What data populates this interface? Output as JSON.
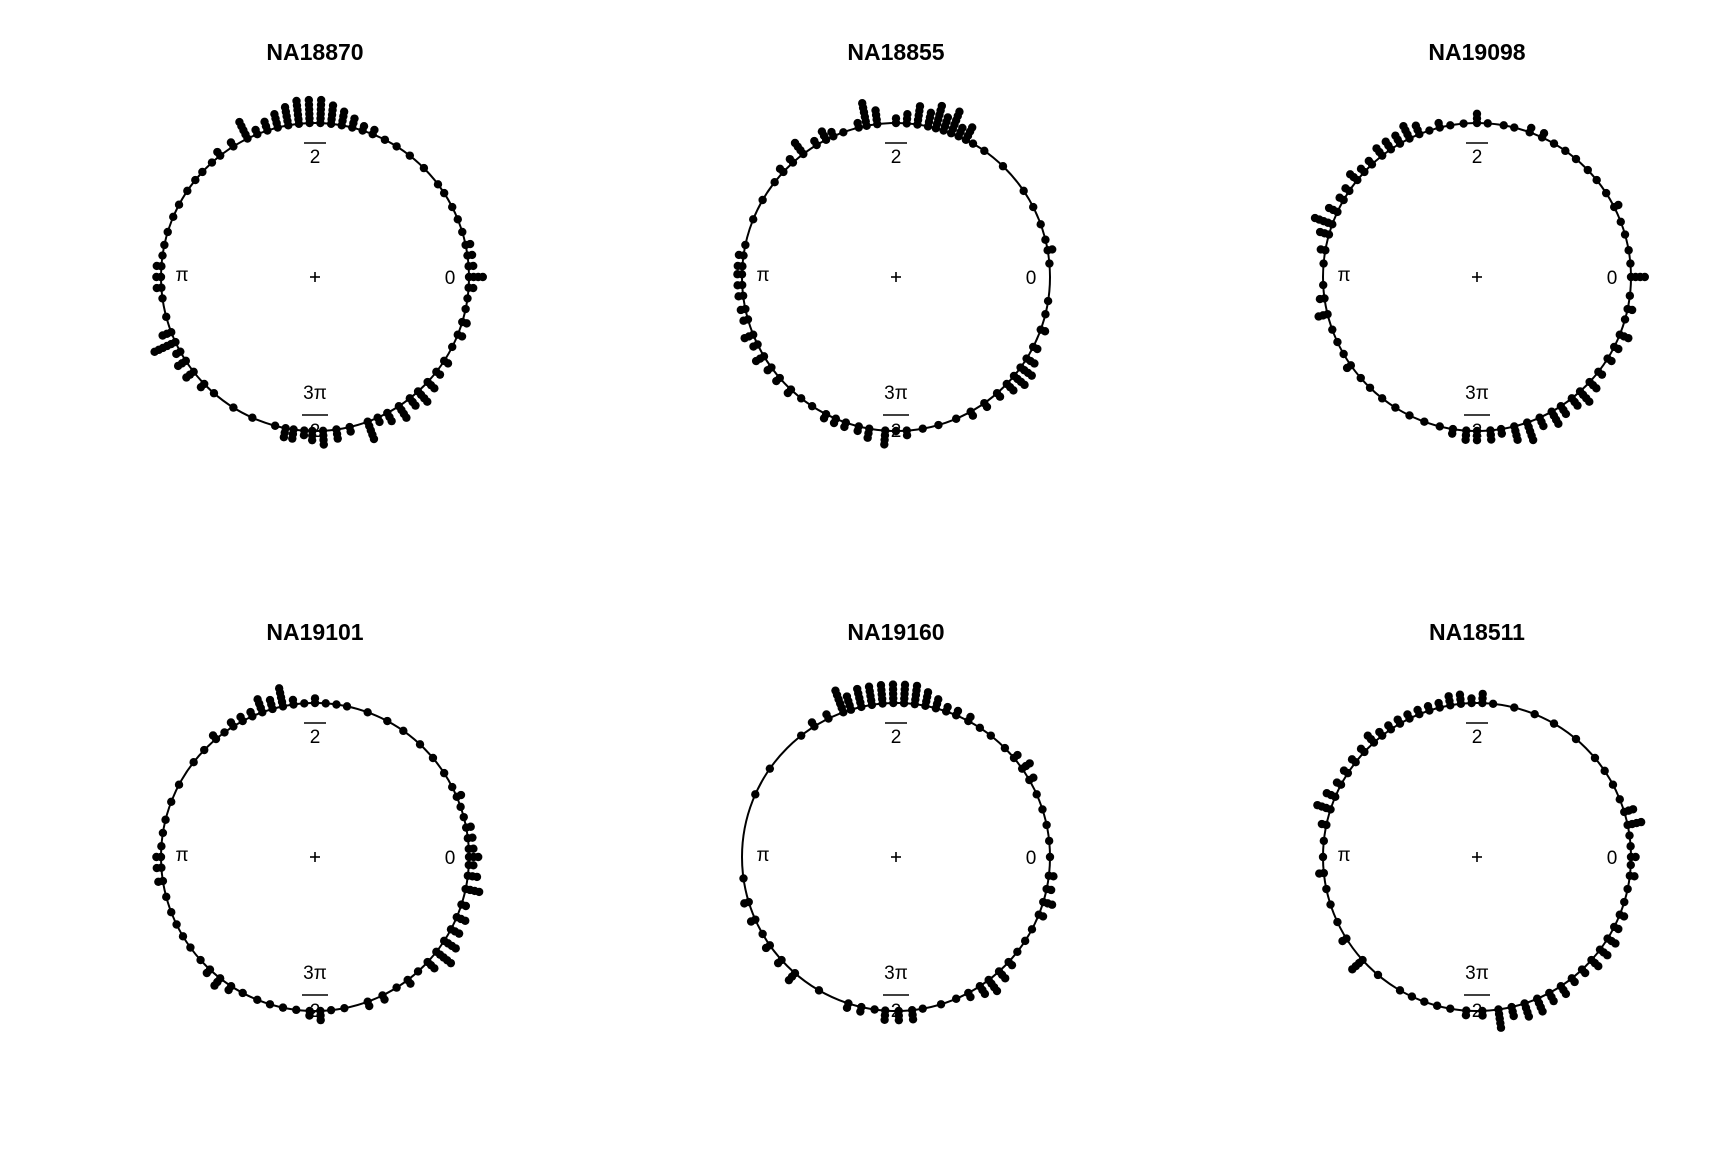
{
  "chart_data": [
    {
      "type": "scatter",
      "subtype": "circular-dotplot",
      "title": "NA18870",
      "axis_labels": {
        "zero": "0",
        "half_pi_num": "",
        "half_pi_den": "2",
        "pi": "π",
        "three_half_pi_num": "3π",
        "three_half_pi_den": "2"
      },
      "bins_deg": [
        0,
        4,
        8,
        12,
        17,
        22,
        27,
        33,
        37,
        45,
        52,
        58,
        63,
        68,
        72,
        76,
        80,
        84,
        88,
        92,
        96,
        100,
        104,
        108,
        112,
        116,
        122,
        128,
        132,
        137,
        141,
        146,
        152,
        157,
        163,
        168,
        172,
        176,
        180,
        184,
        188,
        195,
        201,
        205,
        209,
        213,
        218,
        224,
        229,
        238,
        246,
        255,
        259,
        262,
        266,
        269,
        273,
        278,
        283,
        290,
        294,
        298,
        303,
        308,
        312,
        317,
        322,
        327,
        333,
        338,
        343,
        348,
        352,
        356
      ],
      "counts": [
        4,
        2,
        2,
        2,
        1,
        1,
        1,
        1,
        1,
        1,
        1,
        1,
        1,
        2,
        2,
        3,
        4,
        5,
        6,
        6,
        6,
        5,
        4,
        3,
        2,
        5,
        2,
        2,
        1,
        1,
        1,
        1,
        1,
        1,
        1,
        1,
        1,
        2,
        2,
        2,
        1,
        1,
        3,
        6,
        2,
        3,
        3,
        2,
        1,
        1,
        1,
        1,
        3,
        3,
        2,
        3,
        4,
        3,
        2,
        5,
        2,
        3,
        4,
        3,
        4,
        3,
        2,
        2,
        1,
        2,
        2,
        1,
        1,
        2
      ]
    },
    {
      "type": "scatter",
      "subtype": "circular-dotplot",
      "title": "NA18855",
      "axis_labels": {
        "zero": "0",
        "half_pi_num": "",
        "half_pi_den": "2",
        "pi": "π",
        "three_half_pi_num": "3π",
        "three_half_pi_den": "2"
      },
      "bins_deg": [
        5,
        10,
        14,
        20,
        27,
        34,
        46,
        55,
        60,
        63,
        66,
        69,
        72,
        75,
        78,
        82,
        86,
        90,
        97,
        101,
        104,
        110,
        114,
        117,
        121,
        127,
        132,
        137,
        142,
        150,
        158,
        168,
        172,
        176,
        179,
        183,
        187,
        192,
        196,
        202,
        206,
        211,
        216,
        221,
        227,
        232,
        237,
        243,
        247,
        251,
        256,
        260,
        266,
        270,
        274,
        280,
        286,
        293,
        299,
        305,
        311,
        316,
        320,
        324,
        328,
        333,
        340,
        346,
        351
      ],
      "counts": [
        1,
        2,
        1,
        1,
        1,
        1,
        1,
        1,
        1,
        4,
        3,
        6,
        4,
        6,
        4,
        5,
        3,
        2,
        4,
        6,
        2,
        1,
        2,
        3,
        2,
        4,
        2,
        2,
        1,
        1,
        1,
        1,
        2,
        2,
        2,
        2,
        2,
        2,
        2,
        3,
        2,
        3,
        2,
        2,
        2,
        1,
        1,
        2,
        2,
        2,
        2,
        3,
        4,
        1,
        2,
        1,
        1,
        1,
        2,
        2,
        2,
        3,
        4,
        4,
        3,
        2,
        2,
        1,
        1
      ]
    },
    {
      "type": "scatter",
      "subtype": "circular-dotplot",
      "title": "NA19098",
      "axis_labels": {
        "zero": "0",
        "half_pi_num": "",
        "half_pi_den": "2",
        "pi": "π",
        "three_half_pi_num": "3π",
        "three_half_pi_den": "2"
      },
      "bins_deg": [
        0,
        5,
        10,
        16,
        21,
        27,
        33,
        39,
        44,
        50,
        55,
        60,
        65,
        70,
        76,
        80,
        86,
        90,
        95,
        100,
        104,
        108,
        112,
        116,
        120,
        124,
        128,
        133,
        137,
        141,
        146,
        150,
        155,
        160,
        164,
        170,
        175,
        183,
        188,
        194,
        200,
        205,
        210,
        215,
        221,
        226,
        232,
        238,
        244,
        250,
        256,
        261,
        266,
        270,
        275,
        279,
        284,
        289,
        294,
        299,
        303,
        308,
        312,
        317,
        322,
        328,
        333,
        338,
        344,
        348,
        353
      ],
      "counts": [
        4,
        1,
        1,
        1,
        1,
        2,
        1,
        1,
        1,
        1,
        1,
        1,
        2,
        2,
        1,
        1,
        1,
        3,
        1,
        1,
        2,
        1,
        3,
        4,
        3,
        3,
        3,
        2,
        2,
        3,
        2,
        2,
        3,
        5,
        3,
        2,
        1,
        1,
        2,
        3,
        1,
        1,
        1,
        2,
        1,
        1,
        1,
        1,
        1,
        1,
        1,
        2,
        3,
        3,
        3,
        2,
        4,
        5,
        3,
        4,
        3,
        3,
        4,
        3,
        2,
        2,
        2,
        3,
        1,
        2,
        1
      ]
    },
    {
      "type": "scatter",
      "subtype": "circular-dotplot",
      "title": "NA19101",
      "axis_labels": {
        "zero": "0",
        "half_pi_num": "",
        "half_pi_den": "2",
        "pi": "π",
        "three_half_pi_num": "3π",
        "three_half_pi_den": "2"
      },
      "bins_deg": [
        0,
        3,
        7,
        11,
        15,
        19,
        23,
        27,
        33,
        40,
        47,
        55,
        62,
        70,
        78,
        82,
        86,
        90,
        94,
        98,
        102,
        106,
        110,
        114,
        118,
        122,
        126,
        130,
        136,
        142,
        152,
        159,
        166,
        171,
        176,
        180,
        184,
        189,
        195,
        201,
        206,
        211,
        216,
        222,
        227,
        232,
        237,
        242,
        248,
        253,
        258,
        263,
        268,
        272,
        276,
        281,
        290,
        296,
        302,
        307,
        312,
        317,
        322,
        327,
        332,
        337,
        342,
        348,
        353,
        357
      ],
      "counts": [
        3,
        2,
        2,
        2,
        1,
        1,
        2,
        1,
        1,
        1,
        1,
        1,
        1,
        1,
        1,
        1,
        1,
        2,
        1,
        2,
        5,
        3,
        4,
        2,
        2,
        2,
        1,
        2,
        1,
        1,
        1,
        1,
        1,
        1,
        1,
        2,
        2,
        2,
        1,
        1,
        1,
        1,
        1,
        1,
        2,
        3,
        2,
        1,
        1,
        1,
        1,
        1,
        2,
        3,
        1,
        1,
        2,
        2,
        1,
        2,
        1,
        3,
        5,
        4,
        3,
        3,
        2,
        4,
        3,
        2
      ]
    },
    {
      "type": "scatter",
      "subtype": "circular-dotplot",
      "title": "NA19160",
      "axis_labels": {
        "zero": "0",
        "half_pi_num": "",
        "half_pi_den": "2",
        "pi": "π",
        "three_half_pi_num": "3π",
        "three_half_pi_den": "2"
      },
      "bins_deg": [
        0,
        6,
        12,
        18,
        24,
        30,
        35,
        40,
        45,
        52,
        57,
        62,
        67,
        71,
        75,
        79,
        83,
        87,
        91,
        95,
        99,
        103,
        107,
        110,
        116,
        122,
        128,
        145,
        156,
        188,
        197,
        204,
        210,
        215,
        222,
        229,
        240,
        252,
        257,
        262,
        266,
        271,
        276,
        280,
        287,
        293,
        298,
        303,
        307,
        312,
        317,
        322,
        327,
        332,
        338,
        343,
        348,
        353
      ],
      "counts": [
        1,
        1,
        1,
        1,
        1,
        2,
        3,
        2,
        1,
        1,
        1,
        2,
        2,
        2,
        3,
        4,
        5,
        5,
        5,
        5,
        5,
        5,
        4,
        6,
        2,
        2,
        1,
        1,
        1,
        1,
        2,
        2,
        1,
        2,
        2,
        3,
        1,
        2,
        2,
        1,
        3,
        3,
        3,
        1,
        1,
        1,
        2,
        3,
        4,
        3,
        2,
        1,
        1,
        1,
        2,
        3,
        2,
        2
      ]
    },
    {
      "type": "scatter",
      "subtype": "circular-dotplot",
      "title": "NA18511",
      "axis_labels": {
        "zero": "0",
        "half_pi_num": "",
        "half_pi_den": "2",
        "pi": "π",
        "three_half_pi_num": "3π",
        "three_half_pi_den": "2"
      },
      "bins_deg": [
        0,
        4,
        8,
        12,
        17,
        22,
        28,
        34,
        40,
        50,
        60,
        68,
        76,
        84,
        88,
        92,
        96,
        100,
        104,
        108,
        112,
        116,
        120,
        124,
        128,
        132,
        137,
        142,
        147,
        152,
        157,
        162,
        168,
        174,
        180,
        186,
        192,
        198,
        205,
        212,
        222,
        230,
        240,
        245,
        250,
        255,
        260,
        266,
        272,
        278,
        283,
        288,
        293,
        298,
        303,
        308,
        313,
        318,
        323,
        328,
        333,
        338,
        343,
        348,
        353,
        357
      ],
      "counts": [
        2,
        1,
        1,
        4,
        3,
        1,
        1,
        1,
        1,
        1,
        1,
        1,
        1,
        1,
        3,
        2,
        3,
        3,
        2,
        2,
        2,
        2,
        2,
        2,
        2,
        3,
        2,
        2,
        2,
        2,
        3,
        4,
        2,
        1,
        1,
        2,
        1,
        1,
        1,
        2,
        4,
        1,
        1,
        1,
        1,
        1,
        1,
        2,
        2,
        5,
        3,
        4,
        4,
        3,
        3,
        2,
        2,
        3,
        3,
        3,
        2,
        2,
        1,
        1,
        2,
        1
      ]
    }
  ]
}
